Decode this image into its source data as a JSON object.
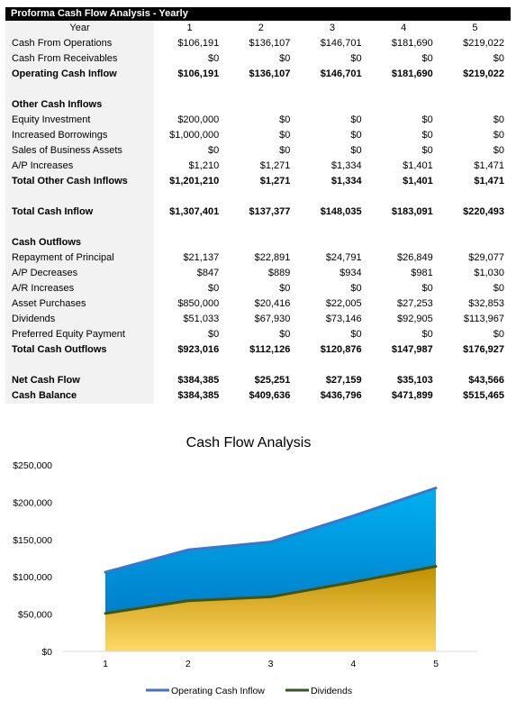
{
  "sheet": {
    "title": "Proforma Cash Flow Analysis - Yearly",
    "header": {
      "label": "Year",
      "years": [
        "1",
        "2",
        "3",
        "4",
        "5"
      ]
    },
    "rows": [
      {
        "label": "Cash From Operations",
        "values": [
          "$106,191",
          "$136,107",
          "$146,701",
          "$181,690",
          "$219,022"
        ],
        "bold": false
      },
      {
        "label": "Cash From Receivables",
        "values": [
          "$0",
          "$0",
          "$0",
          "$0",
          "$0"
        ],
        "bold": false
      },
      {
        "label": "Operating Cash Inflow",
        "values": [
          "$106,191",
          "$136,107",
          "$146,701",
          "$181,690",
          "$219,022"
        ],
        "bold": true
      },
      {
        "blank": true
      },
      {
        "label": "Other Cash Inflows",
        "values": [
          "",
          "",
          "",
          "",
          ""
        ],
        "bold": true
      },
      {
        "label": "Equity Investment",
        "values": [
          "$200,000",
          "$0",
          "$0",
          "$0",
          "$0"
        ],
        "bold": false
      },
      {
        "label": "Increased Borrowings",
        "values": [
          "$1,000,000",
          "$0",
          "$0",
          "$0",
          "$0"
        ],
        "bold": false
      },
      {
        "label": "Sales of Business Assets",
        "values": [
          "$0",
          "$0",
          "$0",
          "$0",
          "$0"
        ],
        "bold": false
      },
      {
        "label": "A/P Increases",
        "values": [
          "$1,210",
          "$1,271",
          "$1,334",
          "$1,401",
          "$1,471"
        ],
        "bold": false
      },
      {
        "label": "Total Other Cash Inflows",
        "values": [
          "$1,201,210",
          "$1,271",
          "$1,334",
          "$1,401",
          "$1,471"
        ],
        "bold": true
      },
      {
        "blank": true
      },
      {
        "label": "Total Cash Inflow",
        "values": [
          "$1,307,401",
          "$137,377",
          "$148,035",
          "$183,091",
          "$220,493"
        ],
        "bold": true
      },
      {
        "blank": true
      },
      {
        "label": "Cash Outflows",
        "values": [
          "",
          "",
          "",
          "",
          ""
        ],
        "bold": true
      },
      {
        "label": "Repayment of Principal",
        "values": [
          "$21,137",
          "$22,891",
          "$24,791",
          "$26,849",
          "$29,077"
        ],
        "bold": false
      },
      {
        "label": "A/P Decreases",
        "values": [
          "$847",
          "$889",
          "$934",
          "$981",
          "$1,030"
        ],
        "bold": false
      },
      {
        "label": "A/R Increases",
        "values": [
          "$0",
          "$0",
          "$0",
          "$0",
          "$0"
        ],
        "bold": false
      },
      {
        "label": "Asset Purchases",
        "values": [
          "$850,000",
          "$20,416",
          "$22,005",
          "$27,253",
          "$32,853"
        ],
        "bold": false
      },
      {
        "label": "Dividends",
        "values": [
          "$51,033",
          "$67,930",
          "$73,146",
          "$92,905",
          "$113,967"
        ],
        "bold": false
      },
      {
        "label": "Preferred Equity Payment",
        "values": [
          "$0",
          "$0",
          "$0",
          "$0",
          "$0"
        ],
        "bold": false
      },
      {
        "label": "Total Cash Outflows",
        "values": [
          "$923,016",
          "$112,126",
          "$120,876",
          "$147,987",
          "$176,927"
        ],
        "bold": true
      },
      {
        "blank": true
      },
      {
        "label": "Net Cash Flow",
        "values": [
          "$384,385",
          "$25,251",
          "$27,159",
          "$35,103",
          "$43,566"
        ],
        "bold": true
      },
      {
        "label": "Cash Balance",
        "values": [
          "$384,385",
          "$409,636",
          "$436,796",
          "$471,899",
          "$515,465"
        ],
        "bold": true
      }
    ]
  },
  "chart_data": {
    "type": "area",
    "title": "Cash Flow Analysis",
    "x": [
      1,
      2,
      3,
      4,
      5
    ],
    "categories": [
      "1",
      "2",
      "3",
      "4",
      "5"
    ],
    "series": [
      {
        "name": "Operating Cash Inflow",
        "values": [
          106191,
          136107,
          146701,
          181690,
          219022
        ],
        "line_color": "#4472c4",
        "fill_top": "#00b0f0",
        "fill_bottom": "#0070c0"
      },
      {
        "name": "Dividends",
        "values": [
          51033,
          67930,
          73146,
          92905,
          113967
        ],
        "line_color": "#375623",
        "fill_top": "#bf8f00",
        "fill_bottom": "#ffd966"
      }
    ],
    "ylim": [
      0,
      250000
    ],
    "yticks": [
      0,
      50000,
      100000,
      150000,
      200000,
      250000
    ],
    "ytick_labels": [
      "$0",
      "$50,000",
      "$100,000",
      "$150,000",
      "$200,000",
      "$250,000"
    ],
    "xlabel": "",
    "ylabel": "",
    "grid": false,
    "legend": "bottom"
  }
}
